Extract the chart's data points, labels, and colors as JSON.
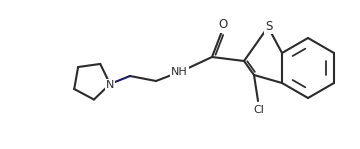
{
  "bg_color": "#ffffff",
  "line_color": "#2b2b2b",
  "label_color": "#2b2b2b",
  "line_width": 1.5,
  "font_size": 7.5,
  "S_label": "S",
  "Cl_label": "Cl",
  "O_label": "O",
  "NH_label": "NH",
  "N_label": "N"
}
